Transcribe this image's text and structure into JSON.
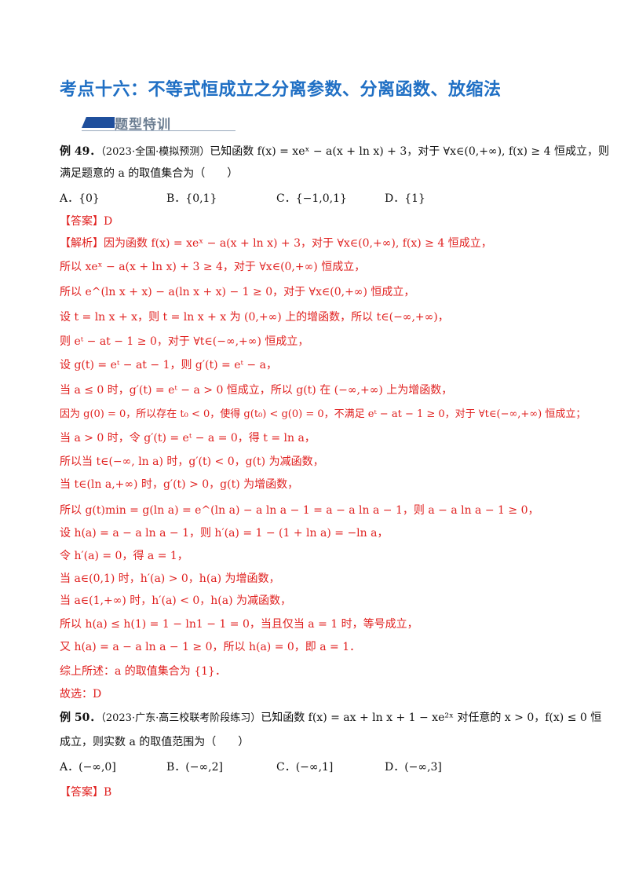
{
  "title": "考点十六：不等式恒成立之分离参数、分离函数、放缩法",
  "section_banner": "题型特训",
  "ex49": {
    "label": "例 49．",
    "source": "（2023·全国·模拟预测）",
    "stem_1": "已知函数 f(x) = xeˣ − a(x + ln x) + 3，对于 ∀x∈(0,+∞), f(x) ≥ 4 恒成立，则",
    "stem_2": "满足题意的 a 的取值集合为（　　）",
    "options": [
      "A．{0}",
      "B．{0,1}",
      "C．{−1,0,1}",
      "D．{1}"
    ],
    "answer": "【答案】D",
    "analysis_tag": "【解析】",
    "steps": [
      "因为函数 f(x) = xeˣ − a(x + ln x) + 3，对于 ∀x∈(0,+∞), f(x) ≥ 4 恒成立，",
      "所以 xeˣ − a(x + ln x) + 3 ≥ 4，对于 ∀x∈(0,+∞) 恒成立，",
      "所以 e^(ln x + x) − a(ln x + x) − 1 ≥ 0，对于 ∀x∈(0,+∞) 恒成立，",
      "设 t = ln x + x，则 t = ln x + x 为 (0,+∞) 上的增函数，所以 t∈(−∞,+∞)，",
      "则 eᵗ − at − 1 ≥ 0，对于 ∀t∈(−∞,+∞) 恒成立，",
      "设 g(t) = eᵗ − at − 1，则 g′(t) = eᵗ − a，",
      "当 a ≤ 0 时，g′(t) = eᵗ − a > 0 恒成立，所以 g(t) 在 (−∞,+∞) 上为增函数，",
      "因为 g(0) = 0，所以存在 t₀ < 0，使得 g(t₀) < g(0) = 0，不满足 eᵗ − at − 1 ≥ 0，对于 ∀t∈(−∞,+∞) 恒成立；",
      "当 a > 0 时，令 g′(t) = eᵗ − a = 0，得 t = ln a，",
      "所以当 t∈(−∞, ln a) 时，g′(t) < 0，g(t) 为减函数，",
      "当 t∈(ln a,+∞) 时，g′(t) > 0，g(t) 为增函数，",
      "所以 g(t)min = g(ln a) = e^(ln a) − a ln a − 1 = a − a ln a − 1，则 a − a ln a − 1 ≥ 0，",
      "设 h(a) = a − a ln a − 1，则 h′(a) = 1 − (1 + ln a) = −ln a，",
      "令 h′(a) = 0，得 a = 1，",
      "当 a∈(0,1) 时，h′(a) > 0，h(a) 为增函数，",
      "当 a∈(1,+∞) 时，h′(a) < 0，h(a) 为减函数，",
      "所以 h(a) ≤ h(1) = 1 − ln1 − 1 = 0，当且仅当 a = 1 时，等号成立，",
      "又 h(a) = a − a ln a − 1 ≥ 0，所以 h(a) = 0，即 a = 1．"
    ],
    "summary": "综上所述：a 的取值集合为 {1}．",
    "choice": "故选：D"
  },
  "ex50": {
    "label": "例 50．",
    "source": "（2023·广东·高三校联考阶段练习）",
    "stem_1": "已知函数 f(x) = ax + ln x + 1 − xe²ˣ 对任意的 x > 0，f(x) ≤ 0 恒",
    "stem_2": "成立，则实数 a 的取值范围为（　　）",
    "options": [
      "A．(−∞,0]",
      "B．(−∞,2]",
      "C．(−∞,1]",
      "D．(−∞,3]"
    ],
    "answer": "【答案】B"
  },
  "colors": {
    "title": "#1f6fc4",
    "answer_red": "#e0201f",
    "banner_bar": "#1f4f9c",
    "banner_text": "#6c7e92"
  }
}
